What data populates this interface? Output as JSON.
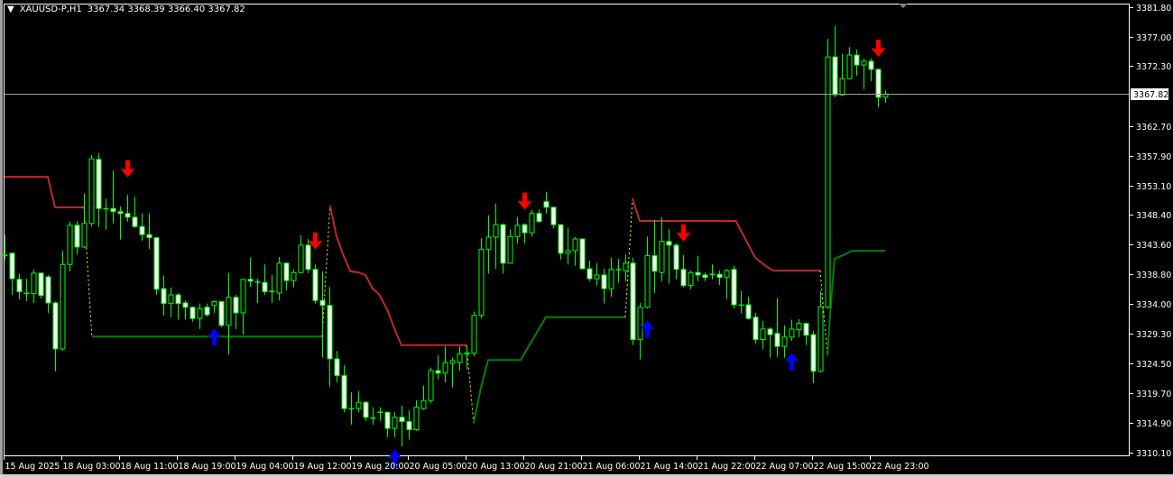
{
  "header": {
    "menu_icon": "triangle-down-icon",
    "symbol_timeframe": "XAUUSD-P,H1",
    "ohlc": "3367.34 3368.39 3366.40 3367.82"
  },
  "colors": {
    "background": "#000000",
    "frame": "#ffffff",
    "candle_outline": "#00ff00",
    "bear_fill": "#ffffff",
    "bull_fill": "#000000",
    "resistance_line": "#c0282d",
    "support_line": "#008000",
    "transition_line": "#ffff00",
    "sell_arrow": "#ff0000",
    "buy_arrow": "#0000ff",
    "current_price_line": "#a0a0a0"
  },
  "chart_data": {
    "type": "candlestick",
    "symbol": "XAUUSD-P",
    "timeframe": "H1",
    "ylim": [
      3310.1,
      3381.8
    ],
    "grid": false,
    "current_price": "3367.82",
    "price_ticks": [
      "3381.80",
      "3377.00",
      "3372.30",
      "3362.70",
      "3357.90",
      "3353.10",
      "3348.40",
      "3343.60",
      "3338.80",
      "3334.00",
      "3329.30",
      "3324.50",
      "3319.70",
      "3314.90",
      "3310.10"
    ],
    "time_labels": [
      {
        "bar": 0,
        "label": "15 Aug 2025"
      },
      {
        "bar": 8,
        "label": "18 Aug 03:00"
      },
      {
        "bar": 16,
        "label": "18 Aug 11:00"
      },
      {
        "bar": 24,
        "label": "18 Aug 19:00"
      },
      {
        "bar": 32,
        "label": "19 Aug 04:00"
      },
      {
        "bar": 40,
        "label": "19 Aug 12:00"
      },
      {
        "bar": 48,
        "label": "19 Aug 20:00"
      },
      {
        "bar": 56,
        "label": "20 Aug 05:00"
      },
      {
        "bar": 64,
        "label": "20 Aug 13:00"
      },
      {
        "bar": 72,
        "label": "20 Aug 21:00"
      },
      {
        "bar": 80,
        "label": "21 Aug 06:00"
      },
      {
        "bar": 88,
        "label": "21 Aug 14:00"
      },
      {
        "bar": 96,
        "label": "21 Aug 22:00"
      },
      {
        "bar": 104,
        "label": "22 Aug 07:00"
      },
      {
        "bar": 112,
        "label": "22 Aug 15:00"
      },
      {
        "bar": 120,
        "label": "22 Aug 23:00"
      }
    ],
    "candles_ohlc": [
      [
        3341.8,
        3345.1,
        3341.2,
        3341.9
      ],
      [
        3342.2,
        3342.3,
        3335.5,
        3338.1
      ],
      [
        3338.0,
        3338.9,
        3334.8,
        3336.0
      ],
      [
        3335.8,
        3338.1,
        3334.5,
        3335.7
      ],
      [
        3335.7,
        3339.6,
        3334.2,
        3339.0
      ],
      [
        3339.0,
        3339.1,
        3334.9,
        3335.4
      ],
      [
        3338.4,
        3338.7,
        3332.6,
        3334.2
      ],
      [
        3334.2,
        3334.4,
        3323.2,
        3326.8
      ],
      [
        3326.8,
        3342.6,
        3326.5,
        3340.4
      ],
      [
        3340.4,
        3347.3,
        3339.3,
        3346.7
      ],
      [
        3346.7,
        3347.4,
        3342.0,
        3343.2
      ],
      [
        3343.2,
        3351.8,
        3343.0,
        3347.0
      ],
      [
        3347.0,
        3358.0,
        3346.5,
        3357.4
      ],
      [
        3357.3,
        3358.3,
        3346.4,
        3349.4
      ],
      [
        3349.4,
        3351.0,
        3346.0,
        3349.3
      ],
      [
        3349.4,
        3355.5,
        3347.0,
        3348.9
      ],
      [
        3348.9,
        3349.7,
        3344.4,
        3348.6
      ],
      [
        3348.6,
        3351.6,
        3347.3,
        3348.0
      ],
      [
        3348.0,
        3351.3,
        3346.3,
        3346.5
      ],
      [
        3346.5,
        3348.6,
        3344.2,
        3345.2
      ],
      [
        3345.2,
        3348.6,
        3342.9,
        3344.7
      ],
      [
        3344.7,
        3344.8,
        3335.5,
        3336.4
      ],
      [
        3336.5,
        3338.6,
        3332.2,
        3334.1
      ],
      [
        3334.1,
        3336.7,
        3331.9,
        3335.5
      ],
      [
        3335.5,
        3335.8,
        3331.5,
        3334.1
      ],
      [
        3334.2,
        3334.6,
        3331.5,
        3333.5
      ],
      [
        3333.5,
        3333.6,
        3331.2,
        3331.7
      ],
      [
        3331.7,
        3334.1,
        3330.0,
        3333.3
      ],
      [
        3333.5,
        3334.1,
        3332.0,
        3332.3
      ],
      [
        3333.8,
        3334.6,
        3332.6,
        3334.4
      ],
      [
        3334.4,
        3334.5,
        3330.3,
        3330.6
      ],
      [
        3330.6,
        3339.0,
        3325.9,
        3335.1
      ],
      [
        3335.1,
        3335.5,
        3330.0,
        3332.6
      ],
      [
        3332.6,
        3338.0,
        3329.1,
        3338.0
      ],
      [
        3338.0,
        3341.5,
        3336.8,
        3337.7
      ],
      [
        3337.6,
        3338.1,
        3334.2,
        3337.5
      ],
      [
        3337.5,
        3340.4,
        3335.5,
        3336.0
      ],
      [
        3336.0,
        3338.7,
        3334.2,
        3336.1
      ],
      [
        3335.8,
        3341.6,
        3334.6,
        3340.6
      ],
      [
        3340.6,
        3340.7,
        3336.2,
        3337.8
      ],
      [
        3337.8,
        3339.6,
        3336.7,
        3339.1
      ],
      [
        3339.1,
        3345.1,
        3339.0,
        3343.5
      ],
      [
        3343.5,
        3344.5,
        3339.0,
        3339.6
      ],
      [
        3339.6,
        3340.4,
        3334.1,
        3334.6
      ],
      [
        3334.6,
        3339.3,
        3325.4,
        3333.8
      ],
      [
        3333.8,
        3336.8,
        3320.7,
        3325.2
      ],
      [
        3325.2,
        3326.5,
        3321.4,
        3322.5
      ],
      [
        3322.5,
        3324.2,
        3316.6,
        3317.2
      ],
      [
        3317.2,
        3319.8,
        3314.6,
        3317.1
      ],
      [
        3317.2,
        3320.0,
        3316.6,
        3318.2
      ],
      [
        3318.2,
        3318.4,
        3315.2,
        3315.8
      ],
      [
        3315.7,
        3317.4,
        3314.6,
        3315.6
      ],
      [
        3316.6,
        3317.4,
        3315.2,
        3316.6
      ],
      [
        3316.6,
        3316.7,
        3312.6,
        3314.0
      ],
      [
        3314.0,
        3316.6,
        3312.6,
        3315.8
      ],
      [
        3315.8,
        3317.7,
        3311.1,
        3315.1
      ],
      [
        3315.1,
        3316.9,
        3312.2,
        3313.8
      ],
      [
        3313.8,
        3318.5,
        3313.6,
        3317.4
      ],
      [
        3317.2,
        3320.9,
        3317.0,
        3318.5
      ],
      [
        3318.5,
        3323.8,
        3318.0,
        3323.3
      ],
      [
        3323.3,
        3325.8,
        3321.9,
        3322.9
      ],
      [
        3322.9,
        3327.2,
        3321.4,
        3324.6
      ],
      [
        3324.5,
        3325.4,
        3320.6,
        3324.9
      ],
      [
        3324.6,
        3327.2,
        3323.3,
        3326.0
      ],
      [
        3326.0,
        3327.2,
        3323.5,
        3326.2
      ],
      [
        3326.1,
        3332.8,
        3325.6,
        3332.2
      ],
      [
        3332.2,
        3344.6,
        3331.7,
        3342.8
      ],
      [
        3342.8,
        3348.3,
        3338.9,
        3344.8
      ],
      [
        3344.8,
        3350.2,
        3339.7,
        3346.8
      ],
      [
        3346.8,
        3347.0,
        3338.9,
        3340.6
      ],
      [
        3340.6,
        3346.0,
        3340.5,
        3344.9
      ],
      [
        3344.9,
        3348.0,
        3343.8,
        3346.7
      ],
      [
        3346.8,
        3347.0,
        3343.8,
        3345.5
      ],
      [
        3345.5,
        3349.2,
        3344.9,
        3348.6
      ],
      [
        3348.6,
        3349.2,
        3347.1,
        3347.3
      ],
      [
        3350.5,
        3352.1,
        3348.6,
        3349.6
      ],
      [
        3349.6,
        3349.6,
        3346.3,
        3346.8
      ],
      [
        3346.8,
        3346.8,
        3341.2,
        3342.2
      ],
      [
        3342.2,
        3346.3,
        3340.4,
        3342.6
      ],
      [
        3342.6,
        3344.8,
        3340.2,
        3344.5
      ],
      [
        3344.5,
        3344.6,
        3339.6,
        3339.7
      ],
      [
        3339.7,
        3341.0,
        3337.7,
        3338.1
      ],
      [
        3338.1,
        3340.6,
        3337.0,
        3338.7
      ],
      [
        3338.7,
        3339.7,
        3334.1,
        3336.5
      ],
      [
        3336.5,
        3341.5,
        3335.2,
        3339.6
      ],
      [
        3339.6,
        3341.3,
        3337.5,
        3339.5
      ],
      [
        3339.4,
        3342.0,
        3337.7,
        3340.6
      ],
      [
        3340.6,
        3341.5,
        3327.4,
        3328.3
      ],
      [
        3328.3,
        3334.2,
        3325.1,
        3333.5
      ],
      [
        3333.5,
        3344.9,
        3333.3,
        3341.8
      ],
      [
        3341.8,
        3347.6,
        3335.8,
        3339.3
      ],
      [
        3339.1,
        3348.0,
        3337.7,
        3344.1
      ],
      [
        3344.1,
        3346.1,
        3337.3,
        3343.5
      ],
      [
        3343.5,
        3343.8,
        3338.0,
        3339.6
      ],
      [
        3339.6,
        3341.9,
        3336.7,
        3337.0
      ],
      [
        3337.0,
        3339.4,
        3336.4,
        3339.1
      ],
      [
        3339.1,
        3341.8,
        3337.7,
        3338.7
      ],
      [
        3338.7,
        3339.1,
        3337.7,
        3338.3
      ],
      [
        3338.8,
        3340.4,
        3338.0,
        3338.8
      ],
      [
        3338.8,
        3339.4,
        3337.1,
        3338.3
      ],
      [
        3338.3,
        3339.7,
        3334.8,
        3339.4
      ],
      [
        3339.6,
        3340.2,
        3333.3,
        3333.9
      ],
      [
        3333.9,
        3336.1,
        3332.5,
        3333.8
      ],
      [
        3333.9,
        3335.2,
        3331.5,
        3331.7
      ],
      [
        3331.9,
        3332.6,
        3327.7,
        3328.3
      ],
      [
        3328.3,
        3331.3,
        3326.8,
        3330.0
      ],
      [
        3330.0,
        3330.3,
        3325.4,
        3329.1
      ],
      [
        3329.3,
        3335.0,
        3325.5,
        3327.2
      ],
      [
        3327.2,
        3330.6,
        3325.4,
        3328.7
      ],
      [
        3328.7,
        3331.5,
        3328.1,
        3330.0
      ],
      [
        3329.9,
        3331.6,
        3328.7,
        3330.9
      ],
      [
        3330.9,
        3331.0,
        3327.4,
        3329.0
      ],
      [
        3329.1,
        3329.7,
        3321.3,
        3323.2
      ],
      [
        3323.2,
        3336.1,
        3323.0,
        3333.6
      ],
      [
        3333.5,
        3376.7,
        3333.3,
        3373.8
      ],
      [
        3373.8,
        3378.8,
        3367.3,
        3367.7
      ],
      [
        3367.7,
        3374.3,
        3367.5,
        3370.3
      ],
      [
        3370.3,
        3375.4,
        3370.2,
        3374.1
      ],
      [
        3374.1,
        3375.0,
        3370.8,
        3372.5
      ],
      [
        3372.5,
        3373.5,
        3368.6,
        3373.1
      ],
      [
        3373.1,
        3373.5,
        3369.9,
        3371.8
      ],
      [
        3371.8,
        3371.9,
        3365.7,
        3367.3
      ],
      [
        3367.34,
        3368.39,
        3366.4,
        3367.82
      ]
    ],
    "indicator_lines": [
      {
        "kind": "resistance",
        "points": [
          [
            0,
            3354.5
          ],
          [
            6,
            3354.5
          ],
          [
            7,
            3349.6
          ],
          [
            11,
            3349.6
          ]
        ]
      },
      {
        "kind": "transition",
        "points": [
          [
            11,
            3349.6
          ],
          [
            12.1,
            3328.8
          ]
        ]
      },
      {
        "kind": "support",
        "points": [
          [
            12.1,
            3328.8
          ],
          [
            44,
            3328.8
          ]
        ]
      },
      {
        "kind": "transition",
        "points": [
          [
            44,
            3328.8
          ],
          [
            45.1,
            3349.9
          ]
        ]
      },
      {
        "kind": "resistance",
        "points": [
          [
            45.1,
            3349.9
          ],
          [
            46,
            3344.9
          ],
          [
            46.9,
            3342.0
          ],
          [
            47.9,
            3339.3
          ],
          [
            49.1,
            3339.1
          ],
          [
            50,
            3338.7
          ],
          [
            51,
            3336.5
          ],
          [
            51.9,
            3335.6
          ],
          [
            53.1,
            3332.9
          ],
          [
            54.1,
            3329.8
          ],
          [
            55,
            3327.4
          ],
          [
            64,
            3327.4
          ]
        ]
      },
      {
        "kind": "transition",
        "points": [
          [
            64,
            3327.4
          ],
          [
            65,
            3314.8
          ]
        ]
      },
      {
        "kind": "support",
        "points": [
          [
            65,
            3314.8
          ],
          [
            66,
            3320.6
          ],
          [
            67,
            3325.0
          ],
          [
            71.5,
            3325.0
          ],
          [
            73,
            3328.0
          ],
          [
            75,
            3331.9
          ],
          [
            86,
            3331.9
          ]
        ]
      },
      {
        "kind": "transition",
        "points": [
          [
            86,
            3331.9
          ],
          [
            87,
            3351.0
          ]
        ]
      },
      {
        "kind": "resistance",
        "points": [
          [
            87,
            3351.0
          ],
          [
            88,
            3347.4
          ],
          [
            101.3,
            3347.4
          ],
          [
            104,
            3341.5
          ],
          [
            105.5,
            3340.1
          ],
          [
            106.5,
            3339.4
          ],
          [
            113,
            3339.4
          ]
        ]
      },
      {
        "kind": "transition",
        "points": [
          [
            113,
            3339.4
          ],
          [
            114,
            3325.7
          ]
        ]
      },
      {
        "kind": "support",
        "points": [
          [
            114,
            3325.7
          ],
          [
            114.4,
            3332.9
          ],
          [
            115,
            3341.3
          ],
          [
            116,
            3341.8
          ],
          [
            117.5,
            3342.6
          ],
          [
            122,
            3342.6
          ]
        ]
      }
    ],
    "signal_arrows": [
      {
        "type": "sell",
        "bar": 17,
        "price": 3354.4
      },
      {
        "type": "sell",
        "bar": 43,
        "price": 3342.8
      },
      {
        "type": "sell",
        "bar": 72,
        "price": 3349.2
      },
      {
        "type": "sell",
        "bar": 94,
        "price": 3344.1
      },
      {
        "type": "sell",
        "bar": 121,
        "price": 3373.8
      },
      {
        "type": "buy",
        "bar": 29,
        "price": 3330.1
      },
      {
        "type": "buy",
        "bar": 54,
        "price": 3310.6
      },
      {
        "type": "buy",
        "bar": 89,
        "price": 3331.4
      },
      {
        "type": "buy",
        "bar": 109,
        "price": 3326.2
      }
    ]
  }
}
